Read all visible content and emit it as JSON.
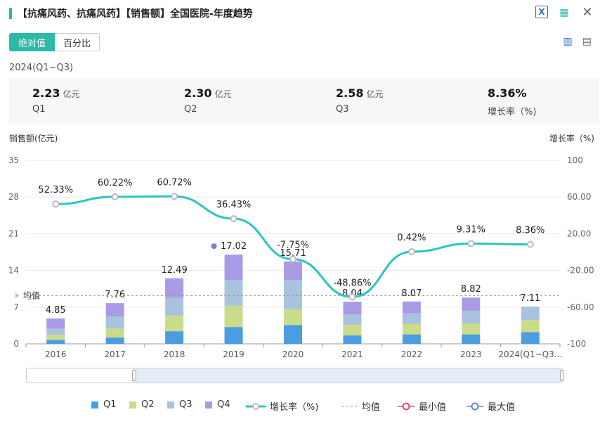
{
  "header": {
    "title": "【抗痛风药、抗痛风药】【销售额】全国医院-年度趋势",
    "icons": [
      "excel-export-icon",
      "image-export-icon",
      "close-icon"
    ]
  },
  "toggle": {
    "absolute_label": "绝对值",
    "percent_label": "百分比"
  },
  "view_icons": [
    "bar-chart-icon",
    "document-icon"
  ],
  "period": "2024(Q1~Q3)",
  "summary": [
    {
      "value": "2.23",
      "unit": "亿元",
      "label": "Q1"
    },
    {
      "value": "2.30",
      "unit": "亿元",
      "label": "Q2"
    },
    {
      "value": "2.58",
      "unit": "亿元",
      "label": "Q3"
    },
    {
      "value": "8.36%",
      "unit": "",
      "label": "增长率（%)"
    }
  ],
  "colors": {
    "Q1": "#4a9de0",
    "Q2": "#c9dc8a",
    "Q3": "#a9c2de",
    "Q4": "#a99be6",
    "growth": "#2ec4c0",
    "avg": "#999999",
    "min": "#e5457a",
    "max": "#6a7fe0",
    "accent": "#2bb9a8"
  },
  "chart_data": {
    "type": "bar",
    "stacked": true,
    "ylabel": "销售额(亿元)",
    "y2label": "增长率（%)",
    "ylim": [
      0,
      35
    ],
    "y2lim": [
      -100,
      100
    ],
    "y_ticks": [
      "0",
      "7",
      "14",
      "21",
      "28",
      "35"
    ],
    "y2_ticks": [
      "-100",
      "-60.00",
      "-20.00",
      "20.00",
      "60.00",
      "100"
    ],
    "categories": [
      "2016",
      "2017",
      "2018",
      "2019",
      "2020",
      "2021",
      "2022",
      "2023",
      "2024(Q1~Q3..."
    ],
    "series": [
      {
        "name": "Q1",
        "values": [
          0.75,
          1.2,
          2.4,
          3.2,
          3.6,
          1.6,
          1.8,
          1.8,
          2.23
        ]
      },
      {
        "name": "Q2",
        "values": [
          1.0,
          1.7,
          3.0,
          4.1,
          3.0,
          2.0,
          2.0,
          2.1,
          2.3
        ]
      },
      {
        "name": "Q3",
        "values": [
          1.2,
          2.3,
          3.4,
          4.9,
          5.6,
          2.0,
          2.0,
          2.4,
          2.58
        ]
      },
      {
        "name": "Q4",
        "values": [
          1.9,
          2.56,
          3.69,
          4.82,
          3.51,
          2.44,
          2.27,
          2.52,
          0
        ]
      }
    ],
    "totals": [
      "4.85",
      "7.76",
      "12.49",
      "17.02",
      "15.71",
      "8.04",
      "8.07",
      "8.82",
      "7.11"
    ],
    "growth": {
      "name": "增长率（%)",
      "values": [
        52.33,
        60.22,
        60.72,
        36.43,
        -7.75,
        -48.86,
        0.42,
        9.31,
        8.36
      ],
      "labels": [
        "52.33%",
        "60.22%",
        "60.72%",
        "36.43%",
        "-7.75%",
        "-48.86%",
        "0.42%",
        "9.31%",
        "8.36%"
      ]
    },
    "average": {
      "label": "均值",
      "value": 9.2
    },
    "max_marker_index": 3
  },
  "legend": [
    {
      "label": "Q1",
      "key": "Q1"
    },
    {
      "label": "Q2",
      "key": "Q2"
    },
    {
      "label": "Q3",
      "key": "Q3"
    },
    {
      "label": "Q4",
      "key": "Q4"
    },
    {
      "label": "增长率（%)",
      "key": "growth"
    },
    {
      "label": "均值",
      "key": "avg"
    },
    {
      "label": "最小值",
      "key": "min"
    },
    {
      "label": "最大值",
      "key": "max"
    }
  ]
}
